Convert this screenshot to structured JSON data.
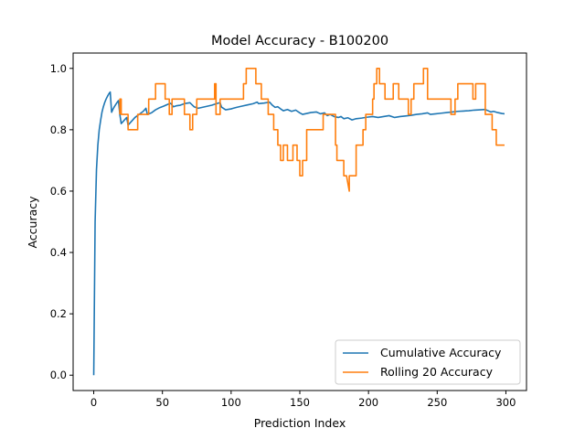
{
  "chart_data": {
    "type": "line",
    "title": "Model Accuracy - B100200",
    "xlabel": "Prediction Index",
    "ylabel": "Accuracy",
    "xlim": [
      -15,
      315
    ],
    "ylim": [
      -0.05,
      1.05
    ],
    "x_ticks": [
      0,
      50,
      100,
      150,
      200,
      250,
      300
    ],
    "y_ticks": [
      0.0,
      0.2,
      0.4,
      0.6,
      0.8,
      1.0
    ],
    "grid": false,
    "legend_position": "bottom-right",
    "series": [
      {
        "name": "Cumulative Accuracy",
        "color": "#1f77b4",
        "points": [
          [
            0,
            0.0
          ],
          [
            1,
            0.5
          ],
          [
            2,
            0.67
          ],
          [
            3,
            0.75
          ],
          [
            4,
            0.8
          ],
          [
            5,
            0.83
          ],
          [
            6,
            0.857
          ],
          [
            7,
            0.875
          ],
          [
            8,
            0.889
          ],
          [
            9,
            0.9
          ],
          [
            10,
            0.909
          ],
          [
            11,
            0.917
          ],
          [
            12,
            0.923
          ],
          [
            13,
            0.857
          ],
          [
            14,
            0.867
          ],
          [
            15,
            0.875
          ],
          [
            16,
            0.882
          ],
          [
            17,
            0.889
          ],
          [
            18,
            0.895
          ],
          [
            19,
            0.85
          ],
          [
            20,
            0.82
          ],
          [
            22,
            0.83
          ],
          [
            24,
            0.84
          ],
          [
            25,
            0.815
          ],
          [
            28,
            0.83
          ],
          [
            30,
            0.84
          ],
          [
            33,
            0.85
          ],
          [
            36,
            0.86
          ],
          [
            38,
            0.87
          ],
          [
            39,
            0.85
          ],
          [
            42,
            0.855
          ],
          [
            45,
            0.865
          ],
          [
            48,
            0.872
          ],
          [
            51,
            0.877
          ],
          [
            54,
            0.883
          ],
          [
            56,
            0.886
          ],
          [
            58,
            0.875
          ],
          [
            60,
            0.878
          ],
          [
            63,
            0.88
          ],
          [
            66,
            0.885
          ],
          [
            70,
            0.888
          ],
          [
            73,
            0.875
          ],
          [
            76,
            0.87
          ],
          [
            79,
            0.873
          ],
          [
            82,
            0.876
          ],
          [
            86,
            0.88
          ],
          [
            90,
            0.886
          ],
          [
            92,
            0.888
          ],
          [
            93,
            0.874
          ],
          [
            96,
            0.865
          ],
          [
            100,
            0.868
          ],
          [
            104,
            0.873
          ],
          [
            108,
            0.877
          ],
          [
            112,
            0.881
          ],
          [
            116,
            0.885
          ],
          [
            119,
            0.89
          ],
          [
            120,
            0.885
          ],
          [
            124,
            0.887
          ],
          [
            128,
            0.89
          ],
          [
            130,
            0.88
          ],
          [
            132,
            0.873
          ],
          [
            134,
            0.875
          ],
          [
            136,
            0.868
          ],
          [
            138,
            0.862
          ],
          [
            141,
            0.866
          ],
          [
            144,
            0.86
          ],
          [
            147,
            0.864
          ],
          [
            150,
            0.855
          ],
          [
            152,
            0.85
          ],
          [
            155,
            0.853
          ],
          [
            158,
            0.856
          ],
          [
            162,
            0.858
          ],
          [
            165,
            0.852
          ],
          [
            168,
            0.855
          ],
          [
            170,
            0.846
          ],
          [
            172,
            0.85
          ],
          [
            175,
            0.843
          ],
          [
            178,
            0.84
          ],
          [
            180,
            0.843
          ],
          [
            182,
            0.836
          ],
          [
            185,
            0.839
          ],
          [
            188,
            0.832
          ],
          [
            191,
            0.836
          ],
          [
            195,
            0.838
          ],
          [
            199,
            0.841
          ],
          [
            203,
            0.843
          ],
          [
            207,
            0.84
          ],
          [
            211,
            0.843
          ],
          [
            215,
            0.846
          ],
          [
            219,
            0.84
          ],
          [
            223,
            0.843
          ],
          [
            227,
            0.845
          ],
          [
            231,
            0.847
          ],
          [
            235,
            0.85
          ],
          [
            239,
            0.852
          ],
          [
            243,
            0.855
          ],
          [
            245,
            0.85
          ],
          [
            249,
            0.852
          ],
          [
            253,
            0.854
          ],
          [
            257,
            0.856
          ],
          [
            261,
            0.858
          ],
          [
            265,
            0.86
          ],
          [
            269,
            0.861
          ],
          [
            273,
            0.862
          ],
          [
            277,
            0.864
          ],
          [
            281,
            0.865
          ],
          [
            285,
            0.866
          ],
          [
            287,
            0.862
          ],
          [
            289,
            0.858
          ],
          [
            291,
            0.86
          ],
          [
            294,
            0.856
          ],
          [
            297,
            0.853
          ],
          [
            299,
            0.852
          ]
        ]
      },
      {
        "name": "Rolling 20 Accuracy",
        "color": "#ff7f0e",
        "points": [
          [
            19,
            0.85
          ],
          [
            19,
            0.9
          ],
          [
            20,
            0.9
          ],
          [
            20,
            0.85
          ],
          [
            22,
            0.85
          ],
          [
            22,
            0.85
          ],
          [
            25,
            0.85
          ],
          [
            25,
            0.8
          ],
          [
            32,
            0.8
          ],
          [
            32,
            0.85
          ],
          [
            40,
            0.85
          ],
          [
            40,
            0.9
          ],
          [
            45,
            0.9
          ],
          [
            45,
            0.95
          ],
          [
            52,
            0.95
          ],
          [
            52,
            0.9
          ],
          [
            55,
            0.9
          ],
          [
            55,
            0.85
          ],
          [
            57,
            0.85
          ],
          [
            57,
            0.9
          ],
          [
            66,
            0.9
          ],
          [
            66,
            0.85
          ],
          [
            70,
            0.85
          ],
          [
            70,
            0.8
          ],
          [
            72,
            0.8
          ],
          [
            72,
            0.85
          ],
          [
            75,
            0.85
          ],
          [
            75,
            0.9
          ],
          [
            88,
            0.9
          ],
          [
            88,
            0.95
          ],
          [
            89,
            0.95
          ],
          [
            89,
            0.85
          ],
          [
            92,
            0.85
          ],
          [
            92,
            0.9
          ],
          [
            109,
            0.9
          ],
          [
            109,
            0.95
          ],
          [
            111,
            0.95
          ],
          [
            111,
            1.0
          ],
          [
            118,
            1.0
          ],
          [
            118,
            0.95
          ],
          [
            122,
            0.95
          ],
          [
            122,
            0.9
          ],
          [
            127,
            0.9
          ],
          [
            127,
            0.85
          ],
          [
            131,
            0.85
          ],
          [
            131,
            0.8
          ],
          [
            134,
            0.8
          ],
          [
            134,
            0.75
          ],
          [
            136,
            0.75
          ],
          [
            136,
            0.7
          ],
          [
            138,
            0.7
          ],
          [
            138,
            0.75
          ],
          [
            141,
            0.75
          ],
          [
            141,
            0.7
          ],
          [
            145,
            0.7
          ],
          [
            145,
            0.75
          ],
          [
            148,
            0.75
          ],
          [
            148,
            0.7
          ],
          [
            150,
            0.7
          ],
          [
            150,
            0.65
          ],
          [
            152,
            0.65
          ],
          [
            152,
            0.7
          ],
          [
            155,
            0.7
          ],
          [
            155,
            0.8
          ],
          [
            167,
            0.8
          ],
          [
            167,
            0.85
          ],
          [
            176,
            0.85
          ],
          [
            176,
            0.75
          ],
          [
            177,
            0.75
          ],
          [
            177,
            0.7
          ],
          [
            182,
            0.7
          ],
          [
            182,
            0.65
          ],
          [
            184,
            0.65
          ],
          [
            186,
            0.6
          ],
          [
            186,
            0.65
          ],
          [
            191,
            0.65
          ],
          [
            191,
            0.75
          ],
          [
            196,
            0.75
          ],
          [
            196,
            0.8
          ],
          [
            198,
            0.8
          ],
          [
            198,
            0.85
          ],
          [
            203,
            0.85
          ],
          [
            203,
            0.9
          ],
          [
            204,
            0.9
          ],
          [
            204,
            0.95
          ],
          [
            206,
            0.95
          ],
          [
            206,
            1.0
          ],
          [
            208,
            1.0
          ],
          [
            208,
            0.95
          ],
          [
            212,
            0.95
          ],
          [
            212,
            0.9
          ],
          [
            218,
            0.9
          ],
          [
            218,
            0.95
          ],
          [
            222,
            0.95
          ],
          [
            222,
            0.9
          ],
          [
            229,
            0.9
          ],
          [
            229,
            0.85
          ],
          [
            231,
            0.85
          ],
          [
            231,
            0.9
          ],
          [
            233,
            0.9
          ],
          [
            233,
            0.95
          ],
          [
            240,
            0.95
          ],
          [
            240,
            1.0
          ],
          [
            243,
            1.0
          ],
          [
            243,
            0.9
          ],
          [
            260,
            0.9
          ],
          [
            260,
            0.85
          ],
          [
            263,
            0.85
          ],
          [
            263,
            0.9
          ],
          [
            265,
            0.9
          ],
          [
            265,
            0.95
          ],
          [
            276,
            0.95
          ],
          [
            276,
            0.9
          ],
          [
            278,
            0.9
          ],
          [
            278,
            0.95
          ],
          [
            285,
            0.95
          ],
          [
            285,
            0.85
          ],
          [
            290,
            0.85
          ],
          [
            290,
            0.8
          ],
          [
            293,
            0.8
          ],
          [
            293,
            0.75
          ],
          [
            299,
            0.75
          ]
        ]
      }
    ]
  }
}
